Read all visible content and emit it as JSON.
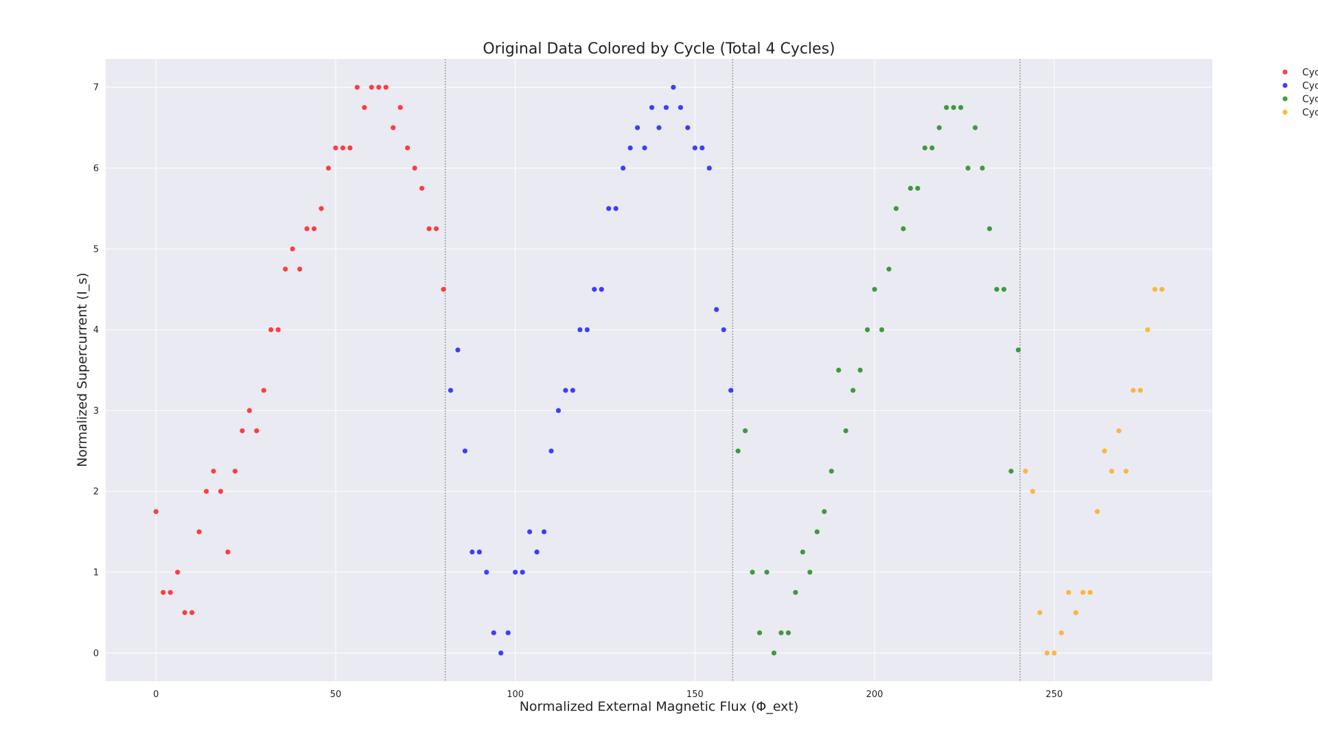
{
  "chart_data": {
    "type": "scatter",
    "title": "Original Data Colored by Cycle (Total 4 Cycles)",
    "xlabel": "Normalized External Magnetic Flux (Φ_ext)",
    "ylabel": "Normalized Supercurrent (I_s)",
    "xlim": [
      -14,
      294
    ],
    "ylim": [
      -0.35,
      7.35
    ],
    "xticks": [
      0,
      50,
      100,
      150,
      200,
      250
    ],
    "yticks": [
      0,
      1,
      2,
      3,
      4,
      5,
      6,
      7
    ],
    "grid": true,
    "legend_position": "outside-top-right",
    "cycle_boundaries": [
      80.5,
      160.5,
      240.5
    ],
    "series": [
      {
        "name": "Cyc",
        "color": "#ff1f1f",
        "x": [
          0,
          2,
          4,
          6,
          8,
          10,
          12,
          14,
          16,
          18,
          20,
          22,
          24,
          26,
          28,
          30,
          32,
          34,
          36,
          38,
          40,
          42,
          44,
          46,
          48,
          50,
          52,
          54,
          56,
          58,
          60,
          62,
          64,
          66,
          68,
          70,
          72,
          74,
          76,
          78,
          80
        ],
        "y": [
          1.75,
          0.75,
          0.75,
          1.0,
          0.5,
          0.5,
          1.5,
          2.0,
          2.25,
          2.0,
          1.25,
          2.25,
          2.75,
          3.0,
          2.75,
          3.25,
          4.0,
          4.0,
          4.75,
          5.0,
          4.75,
          5.25,
          5.25,
          5.5,
          6.0,
          6.25,
          6.25,
          6.25,
          7.0,
          6.75,
          7.0,
          7.0,
          7.0,
          6.5,
          6.75,
          6.25,
          6.0,
          5.75,
          5.25,
          5.25,
          4.5
        ]
      },
      {
        "name": "Cyc",
        "color": "#1f1fff",
        "x": [
          82,
          84,
          86,
          88,
          90,
          92,
          94,
          96,
          98,
          100,
          102,
          104,
          106,
          108,
          110,
          112,
          114,
          116,
          118,
          120,
          122,
          124,
          126,
          128,
          130,
          132,
          134,
          136,
          138,
          140,
          142,
          144,
          146,
          148,
          150,
          152,
          154,
          156,
          158,
          160
        ],
        "y": [
          3.25,
          3.75,
          2.5,
          1.25,
          1.25,
          1.0,
          0.25,
          0.0,
          0.25,
          1.0,
          1.0,
          1.5,
          1.25,
          1.5,
          2.5,
          3.0,
          3.25,
          3.25,
          4.0,
          4.0,
          4.5,
          4.5,
          5.5,
          5.5,
          6.0,
          6.25,
          6.5,
          6.25,
          6.75,
          6.5,
          6.75,
          7.0,
          6.75,
          6.5,
          6.25,
          6.25,
          6.0,
          4.25,
          4.0,
          3.25
        ]
      },
      {
        "name": "Cyc",
        "color": "#1f8c1f",
        "x": [
          162,
          164,
          166,
          168,
          170,
          172,
          174,
          176,
          178,
          180,
          182,
          184,
          186,
          188,
          190,
          192,
          194,
          196,
          198,
          200,
          202,
          204,
          206,
          208,
          210,
          212,
          214,
          216,
          218,
          220,
          222,
          224,
          226,
          228,
          230,
          232,
          234,
          236,
          238,
          240
        ],
        "y": [
          2.5,
          2.75,
          1.0,
          0.25,
          1.0,
          0.0,
          0.25,
          0.25,
          0.75,
          1.25,
          1.0,
          1.5,
          1.75,
          2.25,
          3.5,
          2.75,
          3.25,
          3.5,
          4.0,
          4.5,
          4.0,
          4.75,
          5.5,
          5.25,
          5.75,
          5.75,
          6.25,
          6.25,
          6.5,
          6.75,
          6.75,
          6.75,
          6.0,
          6.5,
          6.0,
          5.25,
          4.5,
          4.5,
          2.25,
          3.75
        ]
      },
      {
        "name": "Cyc",
        "color": "#ffab1f",
        "x": [
          242,
          244,
          246,
          248,
          250,
          252,
          254,
          256,
          258,
          260,
          262,
          264,
          266,
          268,
          270,
          272,
          274,
          276,
          278,
          280
        ],
        "y": [
          2.25,
          2.0,
          0.5,
          0.0,
          0.0,
          0.25,
          0.75,
          0.5,
          0.75,
          0.75,
          1.75,
          2.5,
          2.25,
          2.75,
          2.25,
          3.25,
          3.25,
          4.0,
          4.5,
          4.5
        ]
      }
    ]
  }
}
